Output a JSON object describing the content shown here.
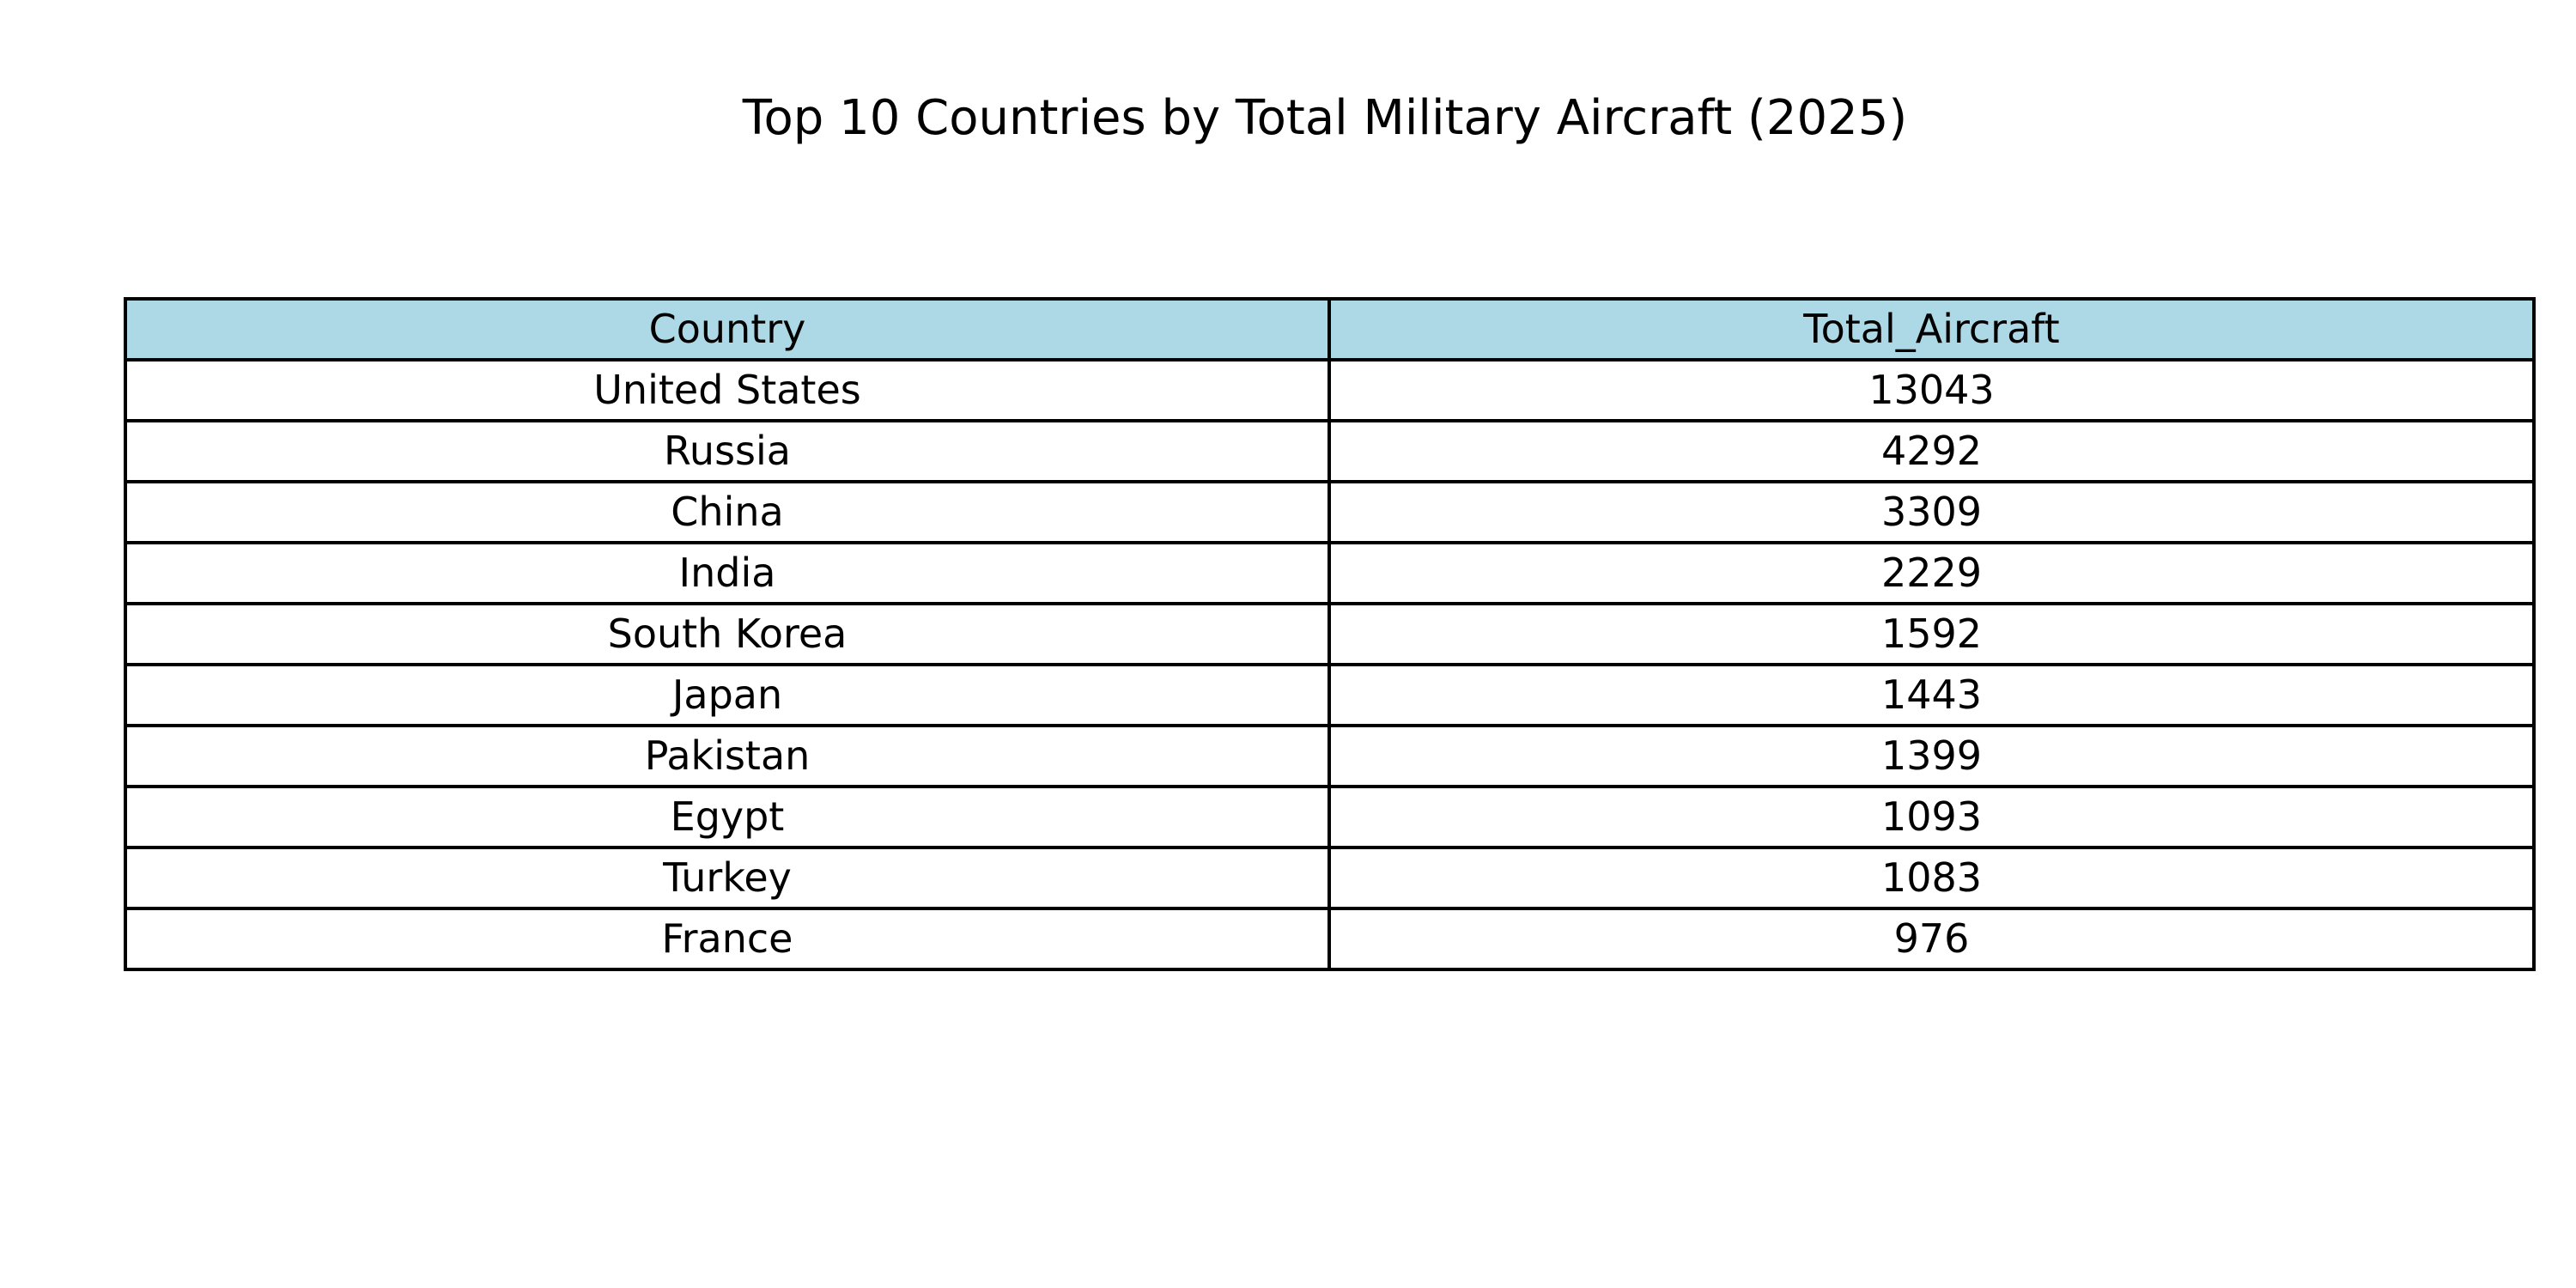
{
  "chart_data": {
    "type": "table",
    "title": "Top 10 Countries by Total Military Aircraft (2025)",
    "columns": [
      "Country",
      "Total_Aircraft"
    ],
    "rows": [
      [
        "United States",
        "13043"
      ],
      [
        "Russia",
        "4292"
      ],
      [
        "China",
        "3309"
      ],
      [
        "India",
        "2229"
      ],
      [
        "South Korea",
        "1592"
      ],
      [
        "Japan",
        "1443"
      ],
      [
        "Pakistan",
        "1399"
      ],
      [
        "Egypt",
        "1093"
      ],
      [
        "Turkey",
        "1083"
      ],
      [
        "France",
        "976"
      ]
    ],
    "header_color": "#add8e6",
    "cell_color": "#ffffff",
    "border_color": "#000000"
  }
}
